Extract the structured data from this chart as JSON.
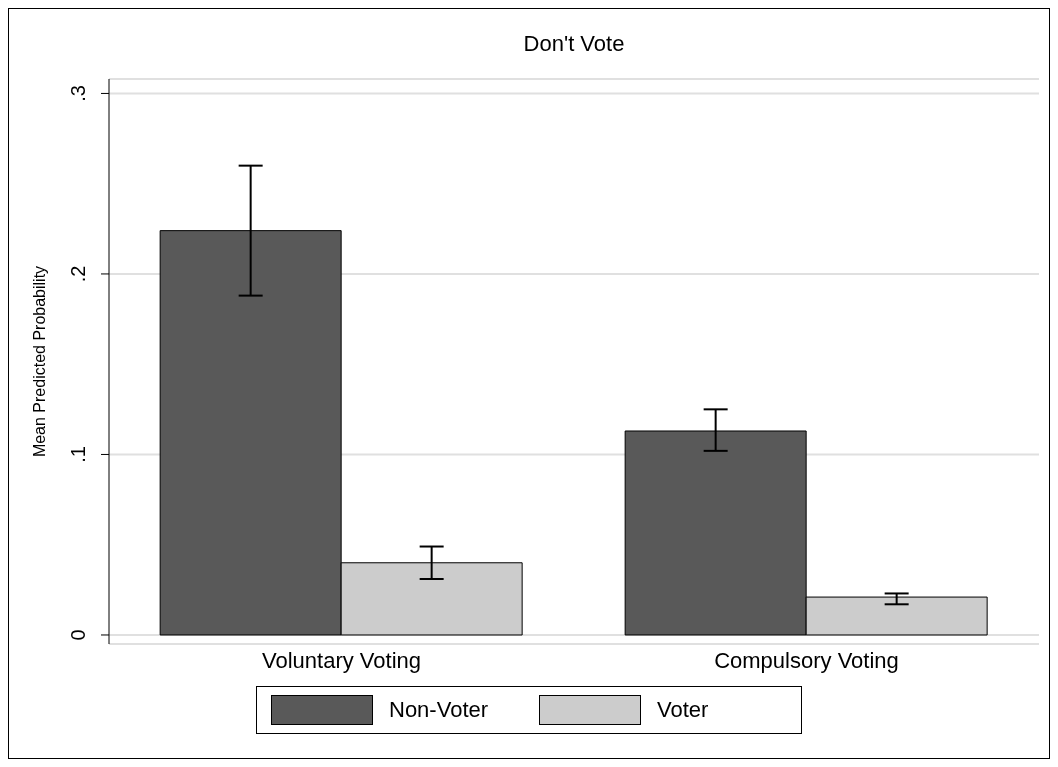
{
  "chart_data": {
    "type": "bar",
    "title": "Don't Vote",
    "ylabel": "Mean Predicted Probability",
    "categories": [
      "Voluntary Voting",
      "Compulsory Voting"
    ],
    "series": [
      {
        "name": "Non-Voter",
        "color": "#595959",
        "values": [
          0.224,
          0.113
        ],
        "errors": [
          [
            0.188,
            0.26
          ],
          [
            0.102,
            0.125
          ]
        ]
      },
      {
        "name": "Voter",
        "color": "#cccccc",
        "values": [
          0.04,
          0.021
        ],
        "errors": [
          [
            0.031,
            0.049
          ],
          [
            0.017,
            0.023
          ]
        ]
      }
    ],
    "ylim": [
      -0.005,
      0.308
    ],
    "yticks": [
      {
        "value": 0,
        "label": "0"
      },
      {
        "value": 0.1,
        "label": ".1"
      },
      {
        "value": 0.2,
        "label": ".2"
      },
      {
        "value": 0.3,
        "label": ".3"
      }
    ],
    "grid": "y",
    "legend": "bottom"
  }
}
